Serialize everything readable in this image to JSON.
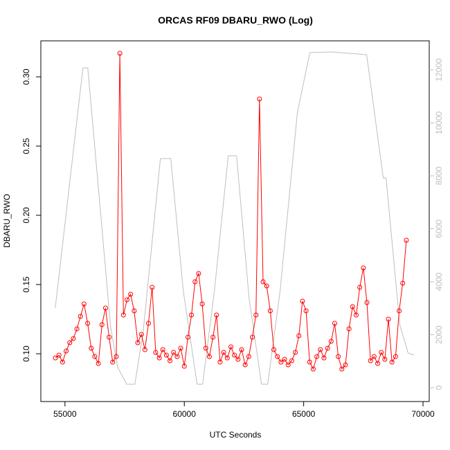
{
  "chart_data": {
    "type": "line",
    "title": "ORCAS RF09 DBARU_RWO (Log)",
    "xlabel": "UTC Seconds",
    "ylabel": "DBARU_RWO",
    "xlim": [
      53990,
      70260
    ],
    "ylim": [
      0.0655,
      0.326
    ],
    "y2lim": [
      -523,
      13098
    ],
    "xticks": [
      55000,
      60000,
      65000,
      70000
    ],
    "yticks": [
      {
        "value": 0.1,
        "label": "0.10"
      },
      0.15,
      {
        "value": 0.2,
        "label": "0.20"
      },
      0.25,
      {
        "value": 0.3,
        "label": "0.30"
      }
    ],
    "y2ticks": [
      0,
      2000,
      4000,
      6000,
      8000,
      10000,
      12000
    ],
    "series": [
      {
        "axis": "y2",
        "color": "#bebebe",
        "markers": false,
        "x": [
          54594,
          55754,
          55957,
          56913,
          57203,
          57580,
          57928,
          58275,
          58999,
          59435,
          59957,
          60536,
          60768,
          61261,
          61841,
          62188,
          62710,
          63232,
          63493,
          64014,
          64739,
          65261,
          66188,
          67638,
          68333,
          68449,
          69029,
          69377,
          69609
        ],
        "values": [
          3007,
          12078,
          12078,
          2301,
          784,
          131,
          131,
          2092,
          8654,
          8654,
          3660,
          131,
          131,
          3660,
          8758,
          8758,
          3399,
          131,
          131,
          3660,
          10405,
          12654,
          12680,
          12575,
          7922,
          7922,
          2353,
          1307,
          1229
        ]
      },
      {
        "axis": "y",
        "color": "#ff0000",
        "markers": true,
        "x": [
          54600,
          54750,
          54900,
          55050,
          55200,
          55350,
          55500,
          55650,
          55800,
          55950,
          56100,
          56250,
          56400,
          56550,
          56700,
          56850,
          57000,
          57150,
          57300,
          57450,
          57600,
          57750,
          57900,
          58050,
          58200,
          58350,
          58500,
          58650,
          58800,
          58950,
          59100,
          59250,
          59400,
          59550,
          59700,
          59850,
          60000,
          60150,
          60300,
          60450,
          60600,
          60750,
          60900,
          61050,
          61200,
          61350,
          61500,
          61650,
          61800,
          61950,
          62100,
          62250,
          62400,
          62550,
          62700,
          62850,
          63000,
          63150,
          63300,
          63450,
          63600,
          63750,
          63900,
          64050,
          64200,
          64350,
          64500,
          64650,
          64800,
          64950,
          65100,
          65250,
          65400,
          65550,
          65700,
          65850,
          66000,
          66150,
          66300,
          66450,
          66600,
          66750,
          66900,
          67050,
          67200,
          67350,
          67500,
          67650,
          67800,
          67950,
          68100,
          68250,
          68400,
          68550,
          68700,
          68850,
          69000,
          69150,
          69300
        ],
        "values": [
          0.097,
          0.099,
          0.094,
          0.102,
          0.108,
          0.111,
          0.118,
          0.127,
          0.136,
          0.122,
          0.104,
          0.098,
          0.093,
          0.121,
          0.133,
          0.112,
          0.094,
          0.098,
          0.317,
          0.128,
          0.139,
          0.143,
          0.131,
          0.108,
          0.114,
          0.103,
          0.122,
          0.148,
          0.101,
          0.097,
          0.103,
          0.099,
          0.095,
          0.101,
          0.098,
          0.104,
          0.091,
          0.112,
          0.128,
          0.152,
          0.158,
          0.136,
          0.104,
          0.098,
          0.112,
          0.128,
          0.094,
          0.101,
          0.097,
          0.105,
          0.099,
          0.096,
          0.103,
          0.092,
          0.098,
          0.112,
          0.128,
          0.284,
          0.152,
          0.149,
          0.131,
          0.103,
          0.098,
          0.094,
          0.096,
          0.092,
          0.095,
          0.101,
          0.113,
          0.138,
          0.131,
          0.094,
          0.089,
          0.098,
          0.103,
          0.097,
          0.104,
          0.109,
          0.122,
          0.098,
          0.089,
          0.092,
          0.118,
          0.134,
          0.128,
          0.148,
          0.162,
          0.137,
          0.095,
          0.098,
          0.093,
          0.101,
          0.096,
          0.125,
          0.094,
          0.098,
          0.131,
          0.151,
          0.182
        ]
      }
    ]
  }
}
